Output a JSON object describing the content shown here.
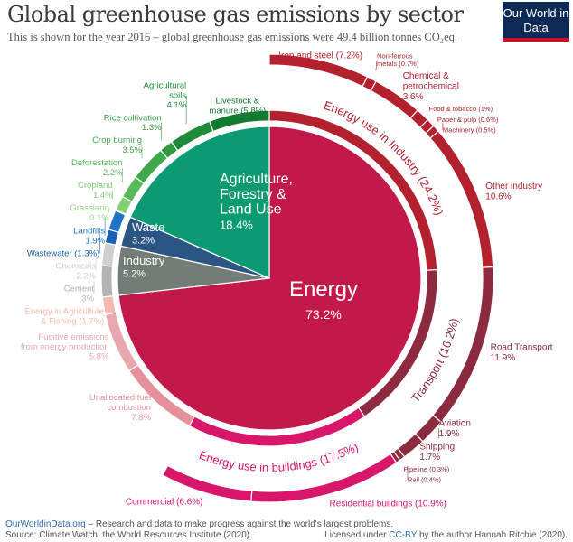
{
  "title": "Global greenhouse gas emissions by sector",
  "subtitle": "This is shown for the year 2016 – global greenhouse gas emissions were 49.4 billion tonnes CO₂eq.",
  "logo": "Our World in Data",
  "footer": {
    "link": "OurWorldinData.org",
    "tagline": " – Research and data to make progress against the world's largest problems.",
    "source": "Source: Climate Watch, the World Resources Institute (2020).",
    "license_pre": "Licensed under ",
    "license_link": "CC-BY",
    "license_post": " by the author Hannah Ritchie (2020)."
  },
  "chart_data": {
    "type": "sunburst",
    "unit": "% of global emissions",
    "sectors": [
      {
        "name": "Energy",
        "value": 73.2,
        "color": "#c2184a",
        "text": [
          "Energy",
          "73.2%"
        ],
        "children": [
          {
            "text": [
              "Energy use in Industry (24.2%)"
            ],
            "value": 24.2,
            "color": "#b3202e",
            "children": [
              {
                "text": [
                  "Iron and steel (7.2%)"
                ],
                "value": 7.2
              },
              {
                "text": [
                  "Non-ferrous",
                  "metals (0.7%)"
                ],
                "value": 0.7
              },
              {
                "text": [
                  "Chemical &",
                  "petrochemical",
                  "3.6%"
                ],
                "value": 3.6
              },
              {
                "text": [
                  "Food & tobacco (1%)"
                ],
                "value": 1
              },
              {
                "text": [
                  "Paper & pulp (0.6%)"
                ],
                "value": 0.6
              },
              {
                "text": [
                  "Machinery (0.5%)"
                ],
                "value": 0.5
              },
              {
                "text": [
                  "Other industry",
                  "10.6%"
                ],
                "value": 10.6
              }
            ]
          },
          {
            "text": [
              "Transport (16.2%)"
            ],
            "value": 16.2,
            "color": "#8c2a3f",
            "children": [
              {
                "text": [
                  "Road Transport",
                  "11.9%"
                ],
                "value": 11.9
              },
              {
                "text": [
                  "Aviation",
                  "1.9%"
                ],
                "value": 1.9
              },
              {
                "text": [
                  "Shipping",
                  "1.7%"
                ],
                "value": 1.7
              },
              {
                "text": [
                  "Rail (0.4%)"
                ],
                "value": 0.4
              },
              {
                "text": [
                  "Pipeline (0.3%)"
                ],
                "value": 0.3
              }
            ]
          },
          {
            "text": [
              "Energy use in buildings (17.5%)"
            ],
            "value": 17.5,
            "color": "#d8166a",
            "children": [
              {
                "text": [
                  "Residential buildings (10.9%)"
                ],
                "value": 10.9
              },
              {
                "text": [
                  "Commercial (6.6%)"
                ],
                "value": 6.6
              }
            ]
          },
          {
            "text": [
              "Unallocated fuel",
              "combustion",
              "7.8%"
            ],
            "value": 7.8,
            "color": "#e6909c"
          },
          {
            "text": [
              "Fugitive emissions",
              "from energy production",
              "5.8%"
            ],
            "value": 5.8,
            "color": "#e9a8b0"
          },
          {
            "text": [
              "Energy in Agriculture",
              "& Fishing (1.7%)"
            ],
            "value": 1.7,
            "color": "#f6b9ae"
          }
        ]
      },
      {
        "name": "Industry",
        "value": 5.2,
        "color": "#737c76",
        "text": [
          "Industry",
          "5.2%"
        ],
        "children": [
          {
            "text": [
              "Cement",
              "3%"
            ],
            "value": 3,
            "color": "#b3b3b3"
          },
          {
            "text": [
              "Chemicals",
              "2.2%"
            ],
            "value": 2.2,
            "color": "#cfcfcf"
          }
        ]
      },
      {
        "name": "Waste",
        "value": 3.2,
        "color": "#2b5583",
        "text": [
          "Waste",
          "3.2%"
        ],
        "children": [
          {
            "text": [
              "Wastewater (1.3%)"
            ],
            "value": 1.3,
            "color": "#1a5fb4"
          },
          {
            "text": [
              "Landfills",
              "1.9%"
            ],
            "value": 1.9,
            "color": "#1f74c8"
          }
        ]
      },
      {
        "name": "Agriculture, Forestry & Land Use",
        "value": 18.4,
        "color": "#0c9a73",
        "text": [
          "Agriculture,",
          "Forestry &",
          "Land Use",
          "18.4%"
        ],
        "children": [
          {
            "text": [
              "Grassland",
              "0.1%"
            ],
            "value": 0.1,
            "color": "#9ad58f"
          },
          {
            "text": [
              "Cropland",
              "1.4%"
            ],
            "value": 1.4,
            "color": "#7fcf73"
          },
          {
            "text": [
              "Deforestation",
              "2.2%"
            ],
            "value": 2.2,
            "color": "#56b95a"
          },
          {
            "text": [
              "Crop burning",
              "3.5%"
            ],
            "value": 3.5,
            "color": "#3ea84a"
          },
          {
            "text": [
              "Rice cultivation",
              "1.3%"
            ],
            "value": 1.3,
            "color": "#2f9a40"
          },
          {
            "text": [
              "Agricultural",
              "soils",
              "4.1%"
            ],
            "value": 4.1,
            "color": "#1f8a3a"
          },
          {
            "text": [
              "Livestock &",
              "manure (5.8%)"
            ],
            "value": 5.8,
            "color": "#137a32"
          }
        ]
      }
    ]
  }
}
